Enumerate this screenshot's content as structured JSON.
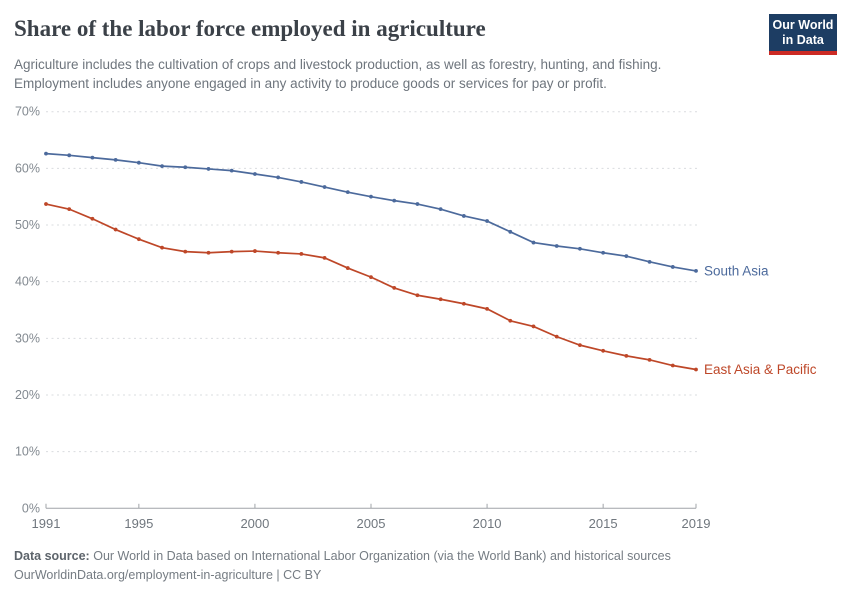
{
  "header": {
    "title": "Share of the labor force employed in agriculture",
    "subtitle_line1": "Agriculture includes the cultivation of crops and livestock production, as well as forestry, hunting, and fishing.",
    "subtitle_line2": "Employment includes anyone engaged in any activity to produce goods or services for pay or profit.",
    "logo": {
      "line1": "Our World",
      "line2": "in Data",
      "bg_color": "#1d3d63",
      "accent_color": "#cc2a24"
    }
  },
  "chart_data": {
    "type": "line",
    "title": "Share of the labor force employed in agriculture",
    "xlabel": "",
    "ylabel": "",
    "ylim": [
      0,
      70
    ],
    "y_ticks": [
      0,
      10,
      20,
      30,
      40,
      50,
      60,
      70
    ],
    "y_tick_suffix": "%",
    "x_ticks": [
      1991,
      1995,
      2000,
      2005,
      2010,
      2015,
      2019
    ],
    "grid": "horizontal-dashed",
    "legend_position": "end-of-line-labels",
    "x": [
      1991,
      1992,
      1993,
      1994,
      1995,
      1996,
      1997,
      1998,
      1999,
      2000,
      2001,
      2002,
      2003,
      2004,
      2005,
      2006,
      2007,
      2008,
      2009,
      2010,
      2011,
      2012,
      2013,
      2014,
      2015,
      2016,
      2017,
      2018,
      2019
    ],
    "series": [
      {
        "name": "South Asia",
        "color": "#4C6A9C",
        "values": [
          62.6,
          62.3,
          61.9,
          61.5,
          61.0,
          60.4,
          60.2,
          59.9,
          59.6,
          59.0,
          58.4,
          57.6,
          56.7,
          55.8,
          55.0,
          54.3,
          53.7,
          52.8,
          51.6,
          50.7,
          48.8,
          46.9,
          46.3,
          45.8,
          45.1,
          44.5,
          43.5,
          42.6,
          41.9
        ]
      },
      {
        "name": "East Asia & Pacific",
        "color": "#BE4728",
        "values": [
          53.7,
          52.8,
          51.1,
          49.2,
          47.5,
          46.0,
          45.3,
          45.1,
          45.3,
          45.4,
          45.1,
          44.9,
          44.2,
          42.4,
          40.8,
          38.9,
          37.6,
          36.9,
          36.1,
          35.2,
          33.1,
          32.1,
          30.3,
          28.8,
          27.8,
          26.9,
          26.2,
          25.2,
          24.5
        ]
      }
    ]
  },
  "footer": {
    "source_label": "Data source:",
    "source_text": "Our World in Data based on International Labor Organization (via the World Bank) and historical sources",
    "citation": "OurWorldinData.org/employment-in-agriculture | CC BY"
  }
}
